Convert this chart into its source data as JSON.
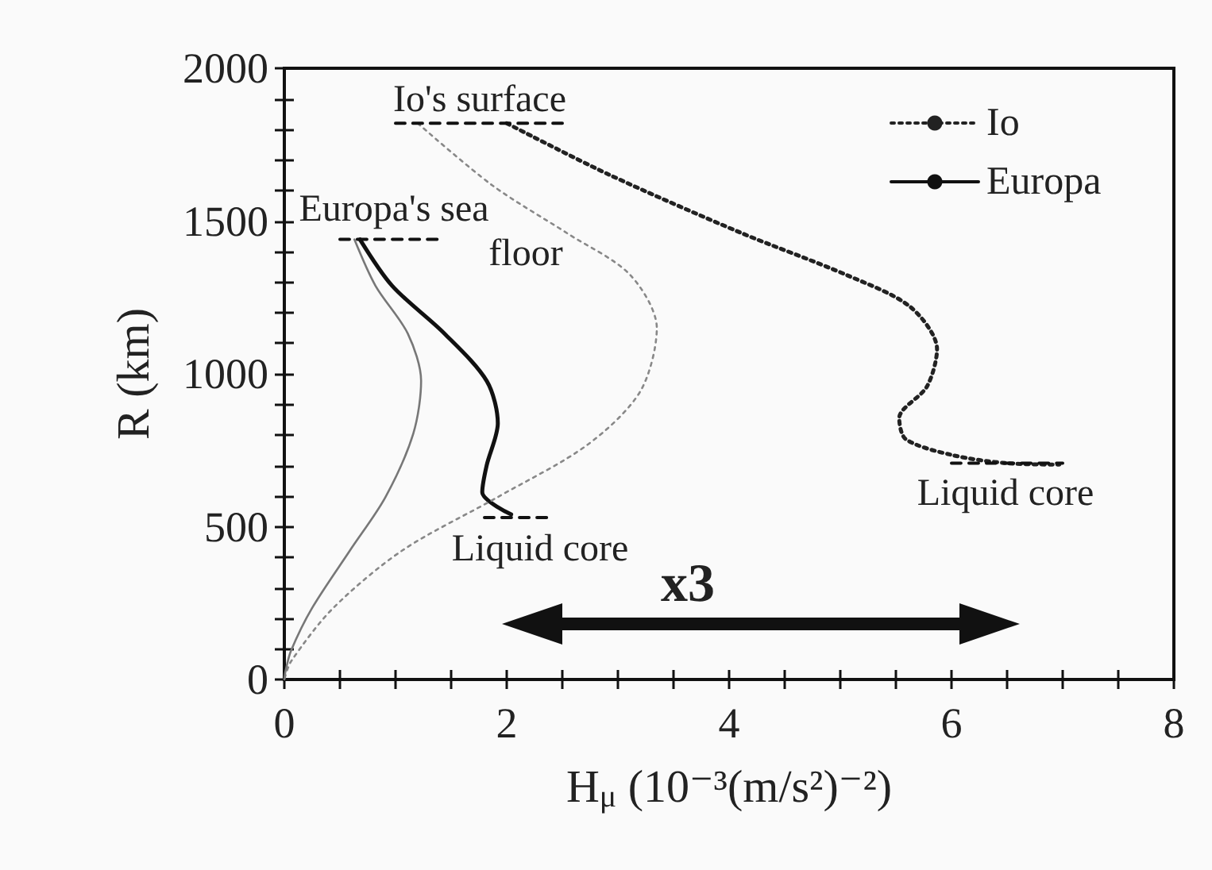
{
  "chart_data": {
    "type": "line",
    "xlabel": "H$_{μ}$ (10⁻³(m/s²)⁻²)",
    "ylabel": "R (km)",
    "xlim": [
      0,
      8
    ],
    "ylim": [
      0,
      2000
    ],
    "xticks": [
      0,
      {
        "value": 0.5,
        "label": null
      },
      {
        "value": 1,
        "label": null
      },
      {
        "value": 1.5,
        "label": null
      },
      2,
      {
        "value": 2.5,
        "label": null
      },
      {
        "value": 3,
        "label": null
      },
      {
        "value": 3.5,
        "label": null
      },
      4,
      {
        "value": 4.5,
        "label": null
      },
      {
        "value": 5,
        "label": null
      },
      {
        "value": 5.5,
        "label": null
      },
      6,
      {
        "value": 6.5,
        "label": null
      },
      {
        "value": 7,
        "label": null
      },
      {
        "value": 7.5,
        "label": null
      },
      8
    ],
    "yticks": [
      0,
      {
        "value": 100,
        "label": null
      },
      {
        "value": 200,
        "label": null
      },
      {
        "value": 300,
        "label": null
      },
      {
        "value": 400,
        "label": null
      },
      500,
      {
        "value": 600,
        "label": null
      },
      {
        "value": 700,
        "label": null
      },
      {
        "value": 800,
        "label": null
      },
      {
        "value": 900,
        "label": null
      },
      1000,
      {
        "value": 1100,
        "label": null
      },
      {
        "value": 1200,
        "label": null
      },
      {
        "value": 1300,
        "label": null
      },
      {
        "value": 1400,
        "label": null
      },
      1500,
      {
        "value": 1600,
        "label": null
      },
      {
        "value": 1700,
        "label": null
      },
      {
        "value": 1800,
        "label": null
      },
      {
        "value": 1900,
        "label": null
      },
      2000
    ],
    "grid": false,
    "legend": "top right",
    "marker": "none",
    "series": [
      {
        "name": "Io",
        "color": "#222222",
        "line_style": "dotted",
        "x": [
          2.0,
          2.92,
          4.11,
          5.06,
          5.63,
          5.87,
          5.78,
          5.53,
          5.59,
          6.01,
          6.49,
          6.97
        ],
        "values": [
          1820,
          1652,
          1461,
          1323,
          1219,
          1081,
          959,
          855,
          786,
          734,
          708,
          703
        ]
      },
      {
        "name": "Europa",
        "color": "#111111",
        "line_style": "solid",
        "x": [
          0.68,
          0.97,
          1.44,
          1.82,
          1.92,
          1.82,
          1.78,
          2.04
        ],
        "values": [
          1440,
          1288,
          1132,
          977,
          838,
          701,
          613,
          540
        ]
      },
      {
        "color": "#888888",
        "line_style": "dotted",
        "x": [
          1.2,
          1.87,
          2.54,
          3.11,
          3.35,
          3.2,
          2.73,
          1.92,
          1.06,
          0.44,
          0.06,
          0
        ],
        "values": [
          1820,
          1617,
          1461,
          1324,
          1150,
          942,
          769,
          597,
          422,
          234,
          59,
          0
        ]
      },
      {
        "color": "#777777",
        "line_style": "solid",
        "x": [
          0.63,
          0.82,
          1.11,
          1.23,
          1.16,
          0.91,
          0.59,
          0.25,
          0.06,
          0.01,
          0
        ],
        "values": [
          1440,
          1288,
          1132,
          977,
          805,
          597,
          422,
          234,
          94,
          26,
          0
        ]
      },
      {
        "color": "#111111",
        "line_style": "dashed",
        "x": [
          1.0,
          2.5
        ],
        "values": [
          1820,
          1820
        ]
      },
      {
        "color": "#111111",
        "line_style": "dashed",
        "x": [
          0.5,
          1.4
        ],
        "values": [
          1440,
          1440
        ]
      },
      {
        "color": "#111111",
        "line_style": "dashed",
        "x": [
          1.8,
          2.4
        ],
        "values": [
          530,
          530
        ]
      },
      {
        "color": "#111111",
        "line_style": "dashed",
        "x": [
          6.0,
          7.0
        ],
        "values": [
          708,
          708
        ]
      }
    ],
    "annotations": [
      "Io's surface",
      "Europa's sea",
      "floor",
      "Liquid core",
      "Liquid core",
      "x3"
    ]
  }
}
